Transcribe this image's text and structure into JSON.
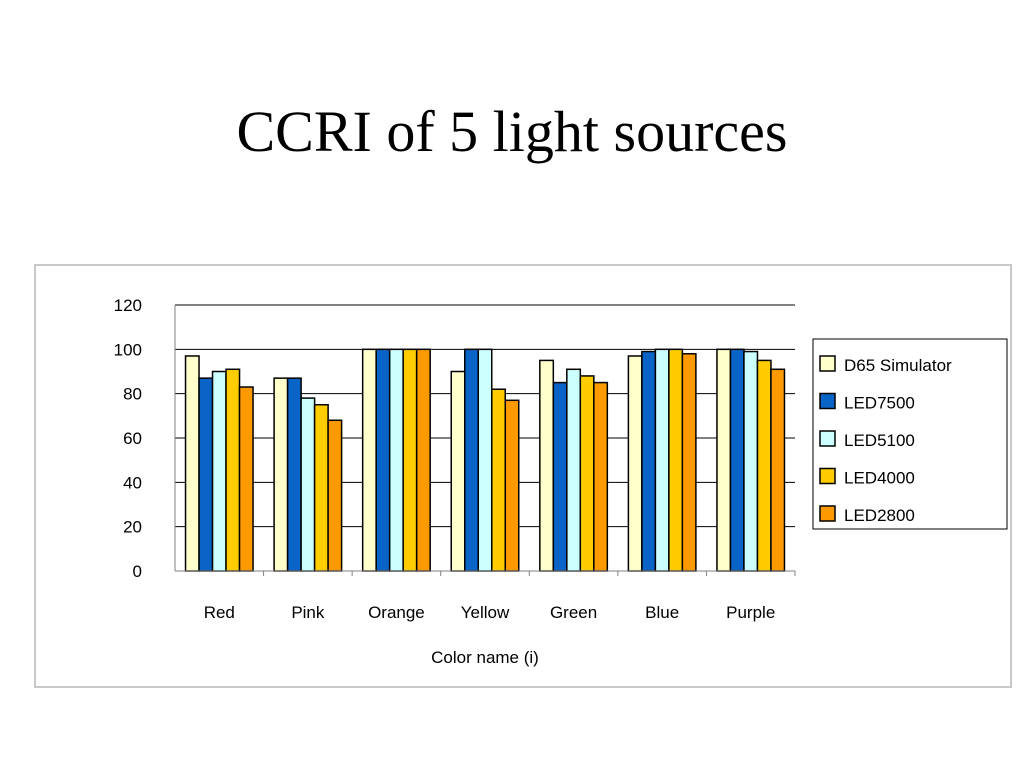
{
  "title": "CCRI of 5 light sources",
  "chart_data": {
    "type": "bar",
    "xlabel": "Color name (i)",
    "ylabel": "",
    "ylim": [
      0,
      120
    ],
    "yticks": [
      0,
      20,
      40,
      60,
      80,
      100,
      120
    ],
    "grid": "horizontal",
    "legend_position": "right",
    "categories": [
      "Red",
      "Pink",
      "Orange",
      "Yellow",
      "Green",
      "Blue",
      "Purple"
    ],
    "series": [
      {
        "name": "D65 Simulator",
        "color": "#FFFFCC",
        "values": [
          97,
          87,
          100,
          90,
          95,
          97,
          100
        ]
      },
      {
        "name": "LED7500",
        "color": "#0A64C8",
        "values": [
          87,
          87,
          100,
          100,
          85,
          99,
          100
        ]
      },
      {
        "name": "LED5100",
        "color": "#CCFFFF",
        "values": [
          90,
          78,
          100,
          100,
          91,
          100,
          99
        ]
      },
      {
        "name": "LED4000",
        "color": "#FFCC00",
        "values": [
          91,
          75,
          100,
          82,
          88,
          100,
          95
        ]
      },
      {
        "name": "LED2800",
        "color": "#FF9900",
        "values": [
          83,
          68,
          100,
          77,
          85,
          98,
          91
        ]
      }
    ]
  }
}
